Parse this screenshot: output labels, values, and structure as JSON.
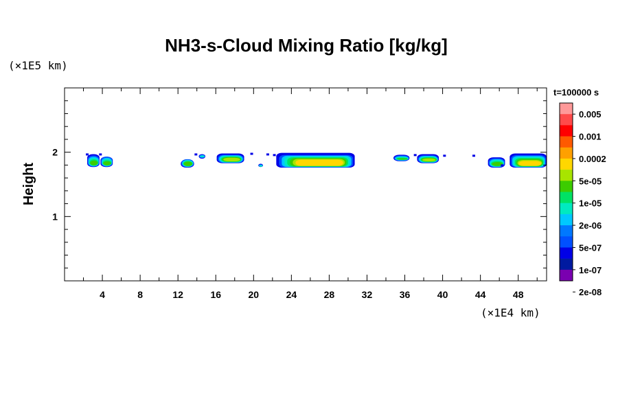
{
  "chart_data": {
    "type": "contour",
    "title": "NH3-s-Cloud Mixing Ratio [kg/kg]",
    "xlabel": "",
    "ylabel": "Height",
    "x_unit": "(×1E4 km)",
    "y_unit": "(×1E5 km)",
    "xlim": [
      0,
      51
    ],
    "ylim": [
      0,
      3
    ],
    "x_ticks": [
      "4",
      "8",
      "12",
      "16",
      "20",
      "24",
      "28",
      "32",
      "36",
      "40",
      "44",
      "48"
    ],
    "y_ticks": [
      "1",
      "2"
    ],
    "time_label": "t=100000 s",
    "colorbar": {
      "colors": [
        "#ff9999",
        "#ff4a4a",
        "#ff0000",
        "#ff5a00",
        "#ffa000",
        "#ffd700",
        "#a8e400",
        "#3ccc00",
        "#00e264",
        "#00eac0",
        "#00c8ff",
        "#0078ff",
        "#0050ff",
        "#0000e6",
        "#001aa0",
        "#7a00b0"
      ],
      "labels": [
        "0.005",
        "0.001",
        "0.0002",
        "5e-05",
        "1e-05",
        "2e-06",
        "5e-07",
        "1e-07",
        "2e-08"
      ]
    },
    "cloud_patches": [
      {
        "x0": 2.4,
        "x1": 3.7,
        "y0": 1.77,
        "y1": 1.86,
        "top": 1.97,
        "cap": 1.97,
        "peak": 5
      },
      {
        "x0": 3.8,
        "x1": 5.1,
        "y0": 1.77,
        "y1": 1.85,
        "top": 1.95,
        "cap": 1.93,
        "peak": 5
      },
      {
        "x0": 12.3,
        "x1": 13.7,
        "y0": 1.76,
        "y1": 1.85,
        "top": 1.9,
        "cap": 1.88,
        "peak": 5
      },
      {
        "x0": 14.2,
        "x1": 14.9,
        "y0": 1.9,
        "y1": 1.94,
        "top": 1.97,
        "cap": 1.97,
        "peak": 3
      },
      {
        "x0": 16.1,
        "x1": 19.0,
        "y0": 1.83,
        "y1": 1.91,
        "top": 1.97,
        "cap": 1.98,
        "peak": 6
      },
      {
        "x0": 20.5,
        "x1": 21.0,
        "y0": 1.77,
        "y1": 1.79,
        "top": 1.82,
        "cap": 1.82,
        "peak": 3
      },
      {
        "x0": 22.4,
        "x1": 30.7,
        "y0": 1.76,
        "y1": 1.88,
        "top": 1.97,
        "cap": 1.99,
        "peak": 7
      },
      {
        "x0": 34.8,
        "x1": 36.5,
        "y0": 1.86,
        "y1": 1.9,
        "top": 1.96,
        "cap": 1.96,
        "peak": 5
      },
      {
        "x0": 37.3,
        "x1": 39.6,
        "y0": 1.83,
        "y1": 1.9,
        "top": 1.96,
        "cap": 1.97,
        "peak": 6
      },
      {
        "x0": 44.8,
        "x1": 46.6,
        "y0": 1.76,
        "y1": 1.84,
        "top": 1.92,
        "cap": 1.92,
        "peak": 5
      },
      {
        "x0": 47.1,
        "x1": 51.0,
        "y0": 1.76,
        "y1": 1.86,
        "top": 1.97,
        "cap": 1.98,
        "peak": 7
      }
    ],
    "small_specks": [
      {
        "x": 2.4,
        "y": 1.96
      },
      {
        "x": 3.8,
        "y": 1.96
      },
      {
        "x": 13.9,
        "y": 1.96
      },
      {
        "x": 19.8,
        "y": 1.97
      },
      {
        "x": 21.5,
        "y": 1.96
      },
      {
        "x": 22.2,
        "y": 1.95
      },
      {
        "x": 37.1,
        "y": 1.95
      },
      {
        "x": 40.2,
        "y": 1.94
      },
      {
        "x": 43.3,
        "y": 1.94
      },
      {
        "x": 46.3,
        "y": 1.79
      }
    ]
  }
}
